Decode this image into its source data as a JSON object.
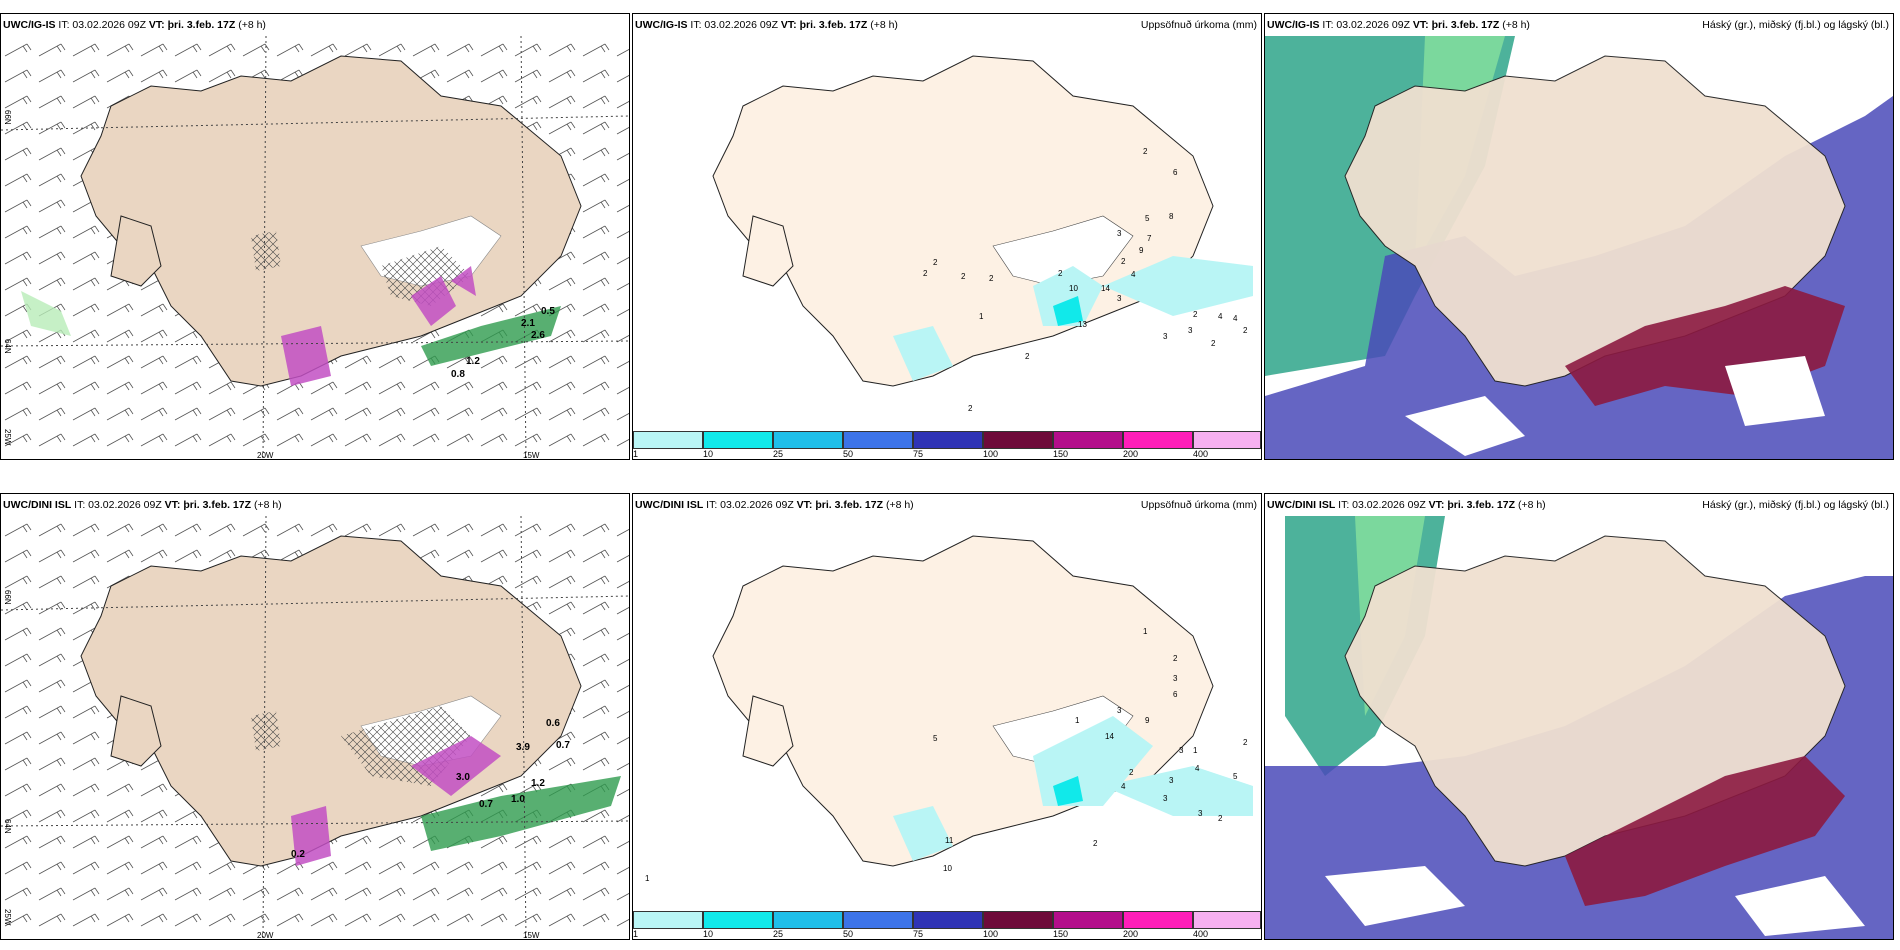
{
  "common": {
    "issue": "IT: 03.02.2026 09Z",
    "valid_label": "VT:",
    "valid_value": "þri. 3.feb. 17Z",
    "lead": "(+8 h)"
  },
  "rows": [
    {
      "model": "UWC/IG-IS",
      "panels": {
        "wind": {
          "lat_labels": [
            "66N",
            "64N"
          ],
          "lon_labels": [
            "20W",
            "15W",
            "25W"
          ]
        },
        "precip": {
          "title": "Uppsöfnuð úrkoma (mm)",
          "values": [
            "2",
            "6",
            "5",
            "8",
            "3",
            "7",
            "9",
            "10",
            "4",
            "2",
            "2",
            "14",
            "3",
            "2",
            "13",
            "2",
            "2",
            "1",
            "2",
            "2",
            "2",
            "2",
            "3",
            "3",
            "4",
            "4",
            "2",
            "2"
          ]
        },
        "cloud": {
          "title": "Háský (gr.), miðský (fj.bl.) og lágský (bl.)"
        }
      },
      "wind_values": [
        "0.5",
        "2.1",
        "2.6",
        "0.8",
        "1.2"
      ]
    },
    {
      "model": "UWC/DINI ISL",
      "panels": {
        "wind": {
          "lat_labels": [
            "66N",
            "64N"
          ],
          "lon_labels": [
            "20W",
            "15W",
            "25W"
          ]
        },
        "precip": {
          "title": "Uppsöfnuð úrkoma (mm)",
          "values": [
            "1",
            "2",
            "3",
            "6",
            "3",
            "9",
            "14",
            "1",
            "1",
            "4",
            "5",
            "3",
            "2",
            "3",
            "2",
            "4",
            "5",
            "11",
            "10",
            "1",
            "2",
            "3",
            "2",
            "3"
          ]
        },
        "cloud": {
          "title": "Háský (gr.), miðský (fj.bl.) og lágský (bl.)"
        }
      },
      "wind_values": [
        "0.6",
        "0.7",
        "3.9",
        "3.0",
        "1.2",
        "1.0",
        "0.7",
        "0.2"
      ]
    }
  ],
  "colorbar": {
    "ticks": [
      "1",
      "10",
      "25",
      "50",
      "75",
      "100",
      "150",
      "200",
      "400"
    ],
    "colors": [
      "#b9f5f5",
      "#11e9ea",
      "#1fbfe9",
      "#3c73e8",
      "#2f33b5",
      "#6e0a3a",
      "#b30e8b",
      "#ff1eb9",
      "#f6b0f0"
    ]
  }
}
